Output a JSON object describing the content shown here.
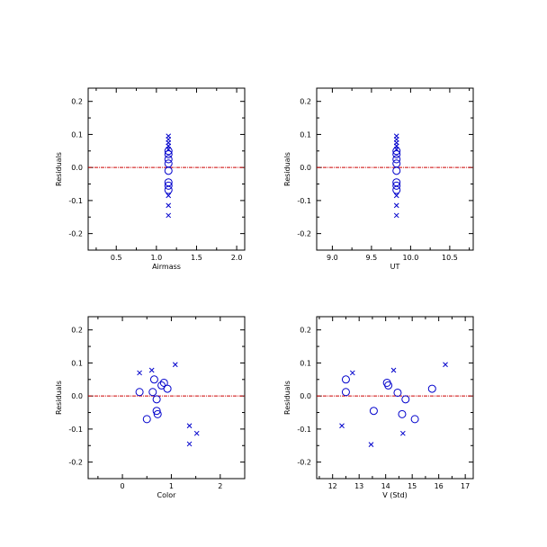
{
  "chart_data": [
    {
      "type": "scatter",
      "title": "",
      "xlabel": "Airmass",
      "ylabel": "Residuals",
      "xlim": [
        0.15,
        2.1
      ],
      "ylim": [
        -0.25,
        0.24
      ],
      "xticks": [
        0.5,
        1.0,
        1.5,
        2.0
      ],
      "xtick_labels": [
        "0.5",
        "1.0",
        "1.5",
        "2.0"
      ],
      "yticks": [
        -0.2,
        -0.1,
        0.0,
        0.1,
        0.2
      ],
      "ytick_labels": [
        "-0.2",
        "-0.1",
        "0.0",
        "0.1",
        "0.2"
      ],
      "reference_line": {
        "y": 0.0,
        "color": "#cc0000"
      },
      "marker_color": "#0000cc",
      "series": [
        {
          "marker": "cross",
          "points": [
            [
              1.15,
              0.095
            ],
            [
              1.15,
              0.085
            ],
            [
              1.15,
              0.075
            ],
            [
              1.15,
              0.065
            ],
            [
              1.15,
              0.055
            ],
            [
              1.15,
              -0.085
            ],
            [
              1.15,
              -0.115
            ],
            [
              1.15,
              -0.145
            ]
          ]
        },
        {
          "marker": "circle",
          "points": [
            [
              1.15,
              0.05
            ],
            [
              1.15,
              0.04
            ],
            [
              1.15,
              0.025
            ],
            [
              1.15,
              0.012
            ],
            [
              1.15,
              -0.01
            ],
            [
              1.15,
              -0.045
            ],
            [
              1.15,
              -0.055
            ],
            [
              1.15,
              -0.068
            ]
          ]
        }
      ]
    },
    {
      "type": "scatter",
      "title": "",
      "xlabel": "UT",
      "ylabel": "Residuals",
      "xlim": [
        8.8,
        10.8
      ],
      "ylim": [
        -0.25,
        0.24
      ],
      "xticks": [
        9.0,
        9.5,
        10.0,
        10.5
      ],
      "xtick_labels": [
        "9.0",
        "9.5",
        "10.0",
        "10.5"
      ],
      "yticks": [
        -0.2,
        -0.1,
        0.0,
        0.1,
        0.2
      ],
      "ytick_labels": [
        "-0.2",
        "-0.1",
        "0.0",
        "0.1",
        "0.2"
      ],
      "reference_line": {
        "y": 0.0,
        "color": "#cc0000"
      },
      "marker_color": "#0000cc",
      "series": [
        {
          "marker": "cross",
          "points": [
            [
              9.82,
              0.095
            ],
            [
              9.82,
              0.085
            ],
            [
              9.82,
              0.075
            ],
            [
              9.82,
              0.065
            ],
            [
              9.82,
              0.055
            ],
            [
              9.82,
              -0.085
            ],
            [
              9.82,
              -0.115
            ],
            [
              9.82,
              -0.145
            ]
          ]
        },
        {
          "marker": "circle",
          "points": [
            [
              9.82,
              0.05
            ],
            [
              9.82,
              0.04
            ],
            [
              9.82,
              0.025
            ],
            [
              9.82,
              0.012
            ],
            [
              9.82,
              -0.01
            ],
            [
              9.82,
              -0.045
            ],
            [
              9.82,
              -0.055
            ],
            [
              9.82,
              -0.068
            ]
          ]
        }
      ]
    },
    {
      "type": "scatter",
      "title": "",
      "xlabel": "Color",
      "ylabel": "Residuals",
      "xlim": [
        -0.7,
        2.5
      ],
      "ylim": [
        -0.25,
        0.24
      ],
      "xticks": [
        0,
        1,
        2
      ],
      "xtick_labels": [
        "0",
        "1",
        "2"
      ],
      "yticks": [
        -0.2,
        -0.1,
        0.0,
        0.1,
        0.2
      ],
      "ytick_labels": [
        "-0.2",
        "-0.1",
        "0.0",
        "0.1",
        "0.2"
      ],
      "reference_line": {
        "y": 0.0,
        "color": "#cc0000"
      },
      "marker_color": "#0000cc",
      "series": [
        {
          "marker": "cross",
          "points": [
            [
              0.35,
              0.07
            ],
            [
              0.6,
              0.078
            ],
            [
              1.08,
              0.095
            ],
            [
              1.37,
              -0.09
            ],
            [
              1.37,
              -0.145
            ],
            [
              1.52,
              -0.113
            ]
          ]
        },
        {
          "marker": "circle",
          "points": [
            [
              0.35,
              0.012
            ],
            [
              0.5,
              -0.07
            ],
            [
              0.62,
              0.012
            ],
            [
              0.65,
              0.05
            ],
            [
              0.7,
              -0.01
            ],
            [
              0.7,
              -0.045
            ],
            [
              0.72,
              -0.055
            ],
            [
              0.8,
              0.032
            ],
            [
              0.85,
              0.04
            ],
            [
              0.92,
              0.022
            ]
          ]
        }
      ]
    },
    {
      "type": "scatter",
      "title": "",
      "xlabel": "V (Std)",
      "ylabel": "Residuals",
      "xlim": [
        11.4,
        17.3
      ],
      "ylim": [
        -0.25,
        0.24
      ],
      "xticks": [
        12,
        13,
        14,
        15,
        16,
        17
      ],
      "xtick_labels": [
        "12",
        "13",
        "14",
        "15",
        "16",
        "17"
      ],
      "yticks": [
        -0.2,
        -0.1,
        0.0,
        0.1,
        0.2
      ],
      "ytick_labels": [
        "-0.2",
        "-0.1",
        "0.0",
        "0.1",
        "0.2"
      ],
      "reference_line": {
        "y": 0.0,
        "color": "#cc0000"
      },
      "marker_color": "#0000cc",
      "series": [
        {
          "marker": "cross",
          "points": [
            [
              12.35,
              -0.09
            ],
            [
              12.75,
              0.07
            ],
            [
              13.45,
              -0.147
            ],
            [
              14.3,
              0.078
            ],
            [
              14.65,
              -0.113
            ],
            [
              16.25,
              0.095
            ]
          ]
        },
        {
          "marker": "circle",
          "points": [
            [
              12.5,
              0.05
            ],
            [
              12.5,
              0.012
            ],
            [
              13.55,
              -0.045
            ],
            [
              14.05,
              0.04
            ],
            [
              14.1,
              0.032
            ],
            [
              14.45,
              0.01
            ],
            [
              14.62,
              -0.055
            ],
            [
              14.75,
              -0.01
            ],
            [
              15.1,
              -0.07
            ],
            [
              15.75,
              0.022
            ]
          ]
        }
      ]
    }
  ]
}
